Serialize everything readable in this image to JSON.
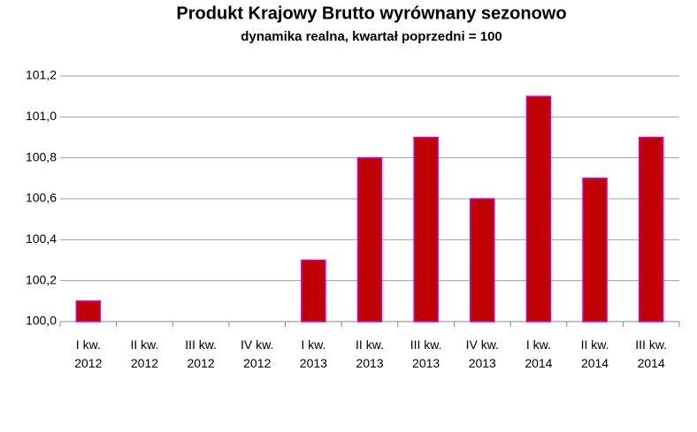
{
  "chart_data": {
    "type": "bar",
    "title": "Produkt Krajowy Brutto wyrównany sezonowo",
    "subtitle": "dynamika realna, kwartał poprzedni = 100",
    "categories": [
      "I kw.\n2012",
      "II kw.\n2012",
      "III kw.\n2012",
      "IV kw.\n2012",
      "I kw.\n2013",
      "II kw.\n2013",
      "III kw.\n2013",
      "IV kw.\n2013",
      "I kw.\n2014",
      "II kw.\n2014",
      "III kw.\n2014"
    ],
    "values": [
      100.1,
      100.0,
      100.0,
      100.0,
      100.3,
      100.8,
      100.9,
      100.6,
      101.1,
      100.7,
      100.9
    ],
    "color": "#c00000",
    "edge_color": "#cc00cc",
    "ylim": [
      100.0,
      101.2
    ],
    "yticks": [
      {
        "value": 100.0,
        "label": "100,0"
      },
      {
        "value": 100.2,
        "label": "100,2"
      },
      {
        "value": 100.4,
        "label": "100,4"
      },
      {
        "value": 100.6,
        "label": "100,6"
      },
      {
        "value": 100.8,
        "label": "100,8"
      },
      {
        "value": 101.0,
        "label": "101,0"
      },
      {
        "value": 101.2,
        "label": "101,2"
      }
    ],
    "grid": true
  }
}
